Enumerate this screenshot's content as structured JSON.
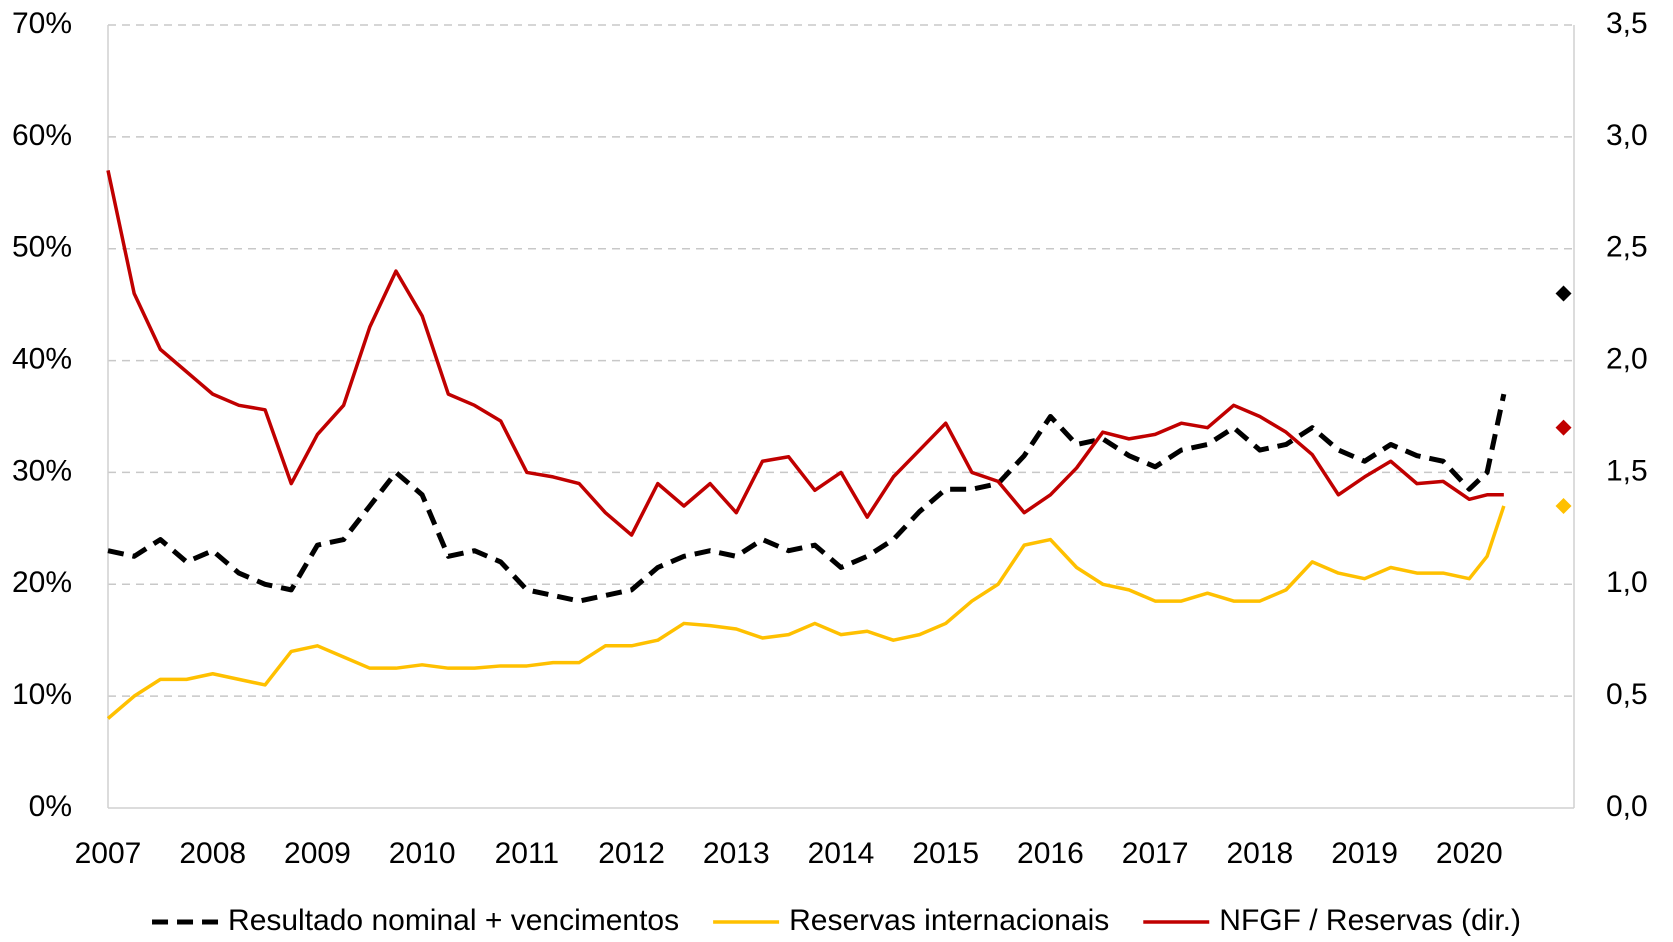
{
  "chart_data": {
    "type": "line",
    "x": [
      2007,
      2007.25,
      2007.5,
      2007.75,
      2008,
      2008.25,
      2008.5,
      2008.75,
      2009,
      2009.25,
      2009.5,
      2009.75,
      2010,
      2010.25,
      2010.5,
      2010.75,
      2011,
      2011.25,
      2011.5,
      2011.75,
      2012,
      2012.25,
      2012.5,
      2012.75,
      2013,
      2013.25,
      2013.5,
      2013.75,
      2014,
      2014.25,
      2014.5,
      2014.75,
      2015,
      2015.25,
      2015.5,
      2015.75,
      2016,
      2016.25,
      2016.5,
      2016.75,
      2017,
      2017.25,
      2017.5,
      2017.75,
      2018,
      2018.25,
      2018.5,
      2018.75,
      2019,
      2019.25,
      2019.5,
      2019.75,
      2020,
      2020.17,
      2020.33
    ],
    "series": [
      {
        "name": "Resultado nominal + vencimentos",
        "color": "#000000",
        "dash": true,
        "values": [
          23,
          22.5,
          24,
          22,
          23,
          21,
          20,
          19.5,
          23.5,
          24,
          27,
          30,
          28,
          22.5,
          23,
          22,
          19.5,
          19,
          18.5,
          19,
          19.5,
          21.5,
          22.5,
          23,
          22.5,
          24,
          23,
          23.5,
          21.5,
          22.5,
          24,
          26.5,
          28.5,
          28.5,
          29,
          31.5,
          35,
          32.5,
          33,
          31.5,
          30.5,
          32,
          32.5,
          34,
          32,
          32.5,
          34,
          32,
          31,
          32.5,
          31.5,
          31,
          28.5,
          30,
          37
        ]
      },
      {
        "name": "Reservas internacionais",
        "color": "#ffc000",
        "values": [
          8,
          10,
          11.5,
          11.5,
          12,
          11.5,
          11,
          14,
          14.5,
          13.5,
          12.5,
          12.5,
          12.8,
          12.5,
          12.5,
          12.7,
          12.7,
          13,
          13,
          14.5,
          14.5,
          15,
          16.5,
          16.3,
          16,
          15.2,
          15.5,
          16.5,
          15.5,
          15.8,
          15,
          15.5,
          16.5,
          18.5,
          20,
          23.5,
          24,
          21.5,
          20,
          19.5,
          18.5,
          18.5,
          19.2,
          18.5,
          18.5,
          19.5,
          22,
          21,
          20.5,
          21.5,
          21,
          21,
          20.5,
          22.5,
          27
        ]
      },
      {
        "name": "NFGF / Reservas (dir.)",
        "color": "#c00000",
        "axis": "y2",
        "values": [
          2.85,
          2.3,
          2.05,
          1.95,
          1.85,
          1.8,
          1.78,
          1.45,
          1.67,
          1.8,
          2.15,
          2.4,
          2.2,
          1.85,
          1.8,
          1.73,
          1.5,
          1.48,
          1.45,
          1.32,
          1.22,
          1.45,
          1.35,
          1.45,
          1.32,
          1.55,
          1.57,
          1.42,
          1.5,
          1.3,
          1.48,
          1.6,
          1.72,
          1.5,
          1.46,
          1.32,
          1.4,
          1.52,
          1.68,
          1.65,
          1.67,
          1.72,
          1.7,
          1.8,
          1.75,
          1.68,
          1.58,
          1.4,
          1.48,
          1.55,
          1.45,
          1.46,
          1.38,
          1.4,
          1.4
        ]
      }
    ],
    "points": [
      {
        "x": 2020.9,
        "y": 46,
        "color": "#000000"
      },
      {
        "x": 2020.9,
        "y": 1.7,
        "axis": "y2",
        "color": "#c00000"
      },
      {
        "x": 2020.9,
        "y": 27,
        "color": "#ffc000"
      }
    ],
    "xlim": [
      2007,
      2021
    ],
    "xticks": [
      2007,
      2008,
      2009,
      2010,
      2011,
      2012,
      2013,
      2014,
      2015,
      2016,
      2017,
      2018,
      2019,
      2020
    ],
    "ylim": [
      0,
      70
    ],
    "yticks": [
      {
        "value": 0,
        "label": "0%"
      },
      {
        "value": 10,
        "label": "10%"
      },
      {
        "value": 20,
        "label": "20%"
      },
      {
        "value": 30,
        "label": "30%"
      },
      {
        "value": 40,
        "label": "40%"
      },
      {
        "value": 50,
        "label": "50%"
      },
      {
        "value": 60,
        "label": "60%"
      },
      {
        "value": 70,
        "label": "70%"
      }
    ],
    "y2lim": [
      0,
      3.5
    ],
    "y2ticks": [
      {
        "value": 0,
        "label": "0,0"
      },
      {
        "value": 0.5,
        "label": "0,5"
      },
      {
        "value": 1,
        "label": "1,0"
      },
      {
        "value": 1.5,
        "label": "1,5"
      },
      {
        "value": 2,
        "label": "2,0"
      },
      {
        "value": 2.5,
        "label": "2,5"
      },
      {
        "value": 3,
        "label": "3,0"
      },
      {
        "value": 3.5,
        "label": "3,5"
      }
    ],
    "grid": true,
    "legend": "bottom"
  }
}
